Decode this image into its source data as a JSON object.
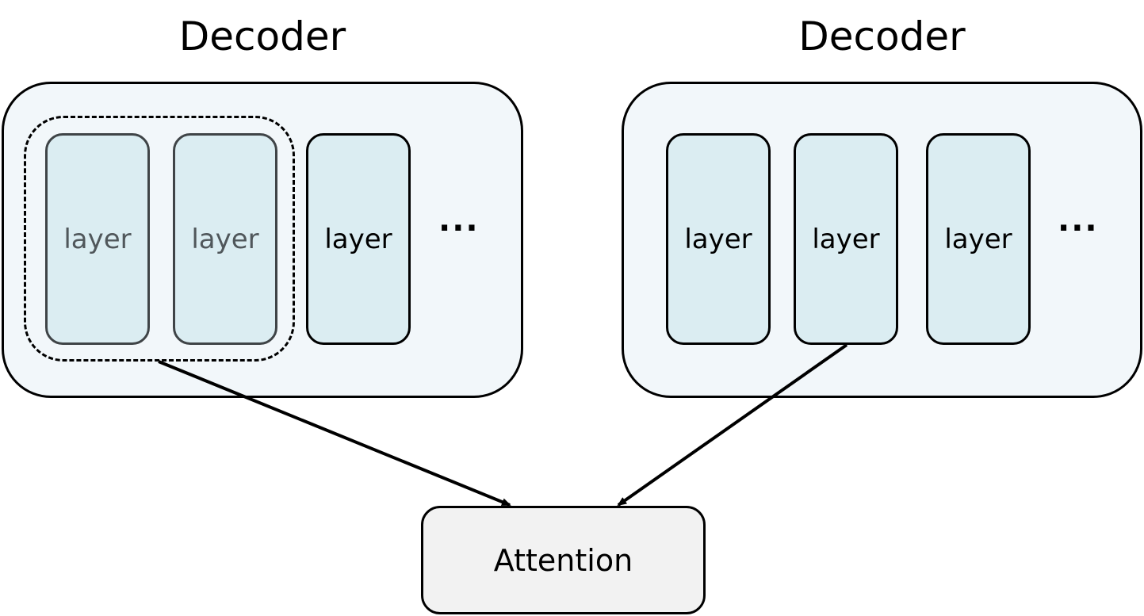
{
  "decoders": [
    {
      "title": "Decoder",
      "layers": [
        "layer",
        "layer",
        "layer"
      ],
      "ellipsis": "···"
    },
    {
      "title": "Decoder",
      "layers": [
        "layer",
        "layer",
        "layer"
      ],
      "ellipsis": "···"
    }
  ],
  "attention": {
    "label": "Attention"
  },
  "colors": {
    "decoder_fill": "#f2f7fa",
    "layer_fill": "#dbedf2",
    "attention_fill": "#f2f2f2",
    "stroke": "#000000",
    "faded_text": "#50575b"
  }
}
